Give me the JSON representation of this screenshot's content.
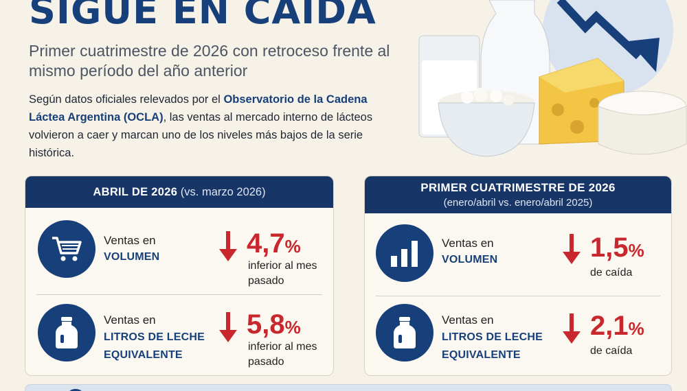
{
  "header": {
    "headline": "SIGUE EN CAÍDA",
    "subtitle": "Primer cuatrimestre de 2026 con retroceso frente al mismo período del año anterior",
    "intro": {
      "part1": "Según datos oficiales relevados por el ",
      "highlight": "Observatorio de la Cadena Láctea Argentina (OCLA)",
      "part2": ", las ventas al mercado interno de lácteos volvieron a caer y marcan uno de los niveles más bajos de la serie histórica."
    }
  },
  "panel_abril": {
    "title_main": "ABRIL DE 2026",
    "title_sub": "(vs. marzo 2026)",
    "rows": [
      {
        "icon": "cart-icon",
        "label_top": "Ventas en",
        "label_bold": "VOLUMEN",
        "value": "4,7",
        "unit": "%",
        "note": "inferior al mes pasado"
      },
      {
        "icon": "milk-jug-icon",
        "label_top": "Ventas en",
        "label_bold": "LITROS DE LECHE EQUIVALENTE",
        "value": "5,8",
        "unit": "%",
        "note": "inferior al mes pasado"
      }
    ]
  },
  "panel_cuatrimestre": {
    "title_main": "PRIMER CUATRIMESTRE DE 2026",
    "title_sub": "(enero/abril vs. enero/abril 2025)",
    "rows": [
      {
        "icon": "bar-chart-icon",
        "label_top": "Ventas en",
        "label_bold": "VOLUMEN",
        "value": "1,5",
        "unit": "%",
        "note": "de caída"
      },
      {
        "icon": "milk-jug-icon",
        "label_top": "Ventas en",
        "label_bold": "LITROS DE LECHE EQUIVALENTE",
        "value": "2,1",
        "unit": "%",
        "note": "de caída"
      }
    ]
  },
  "colors": {
    "navy": "#173f7a",
    "red": "#c8272d",
    "background": "#f6f2e8"
  }
}
